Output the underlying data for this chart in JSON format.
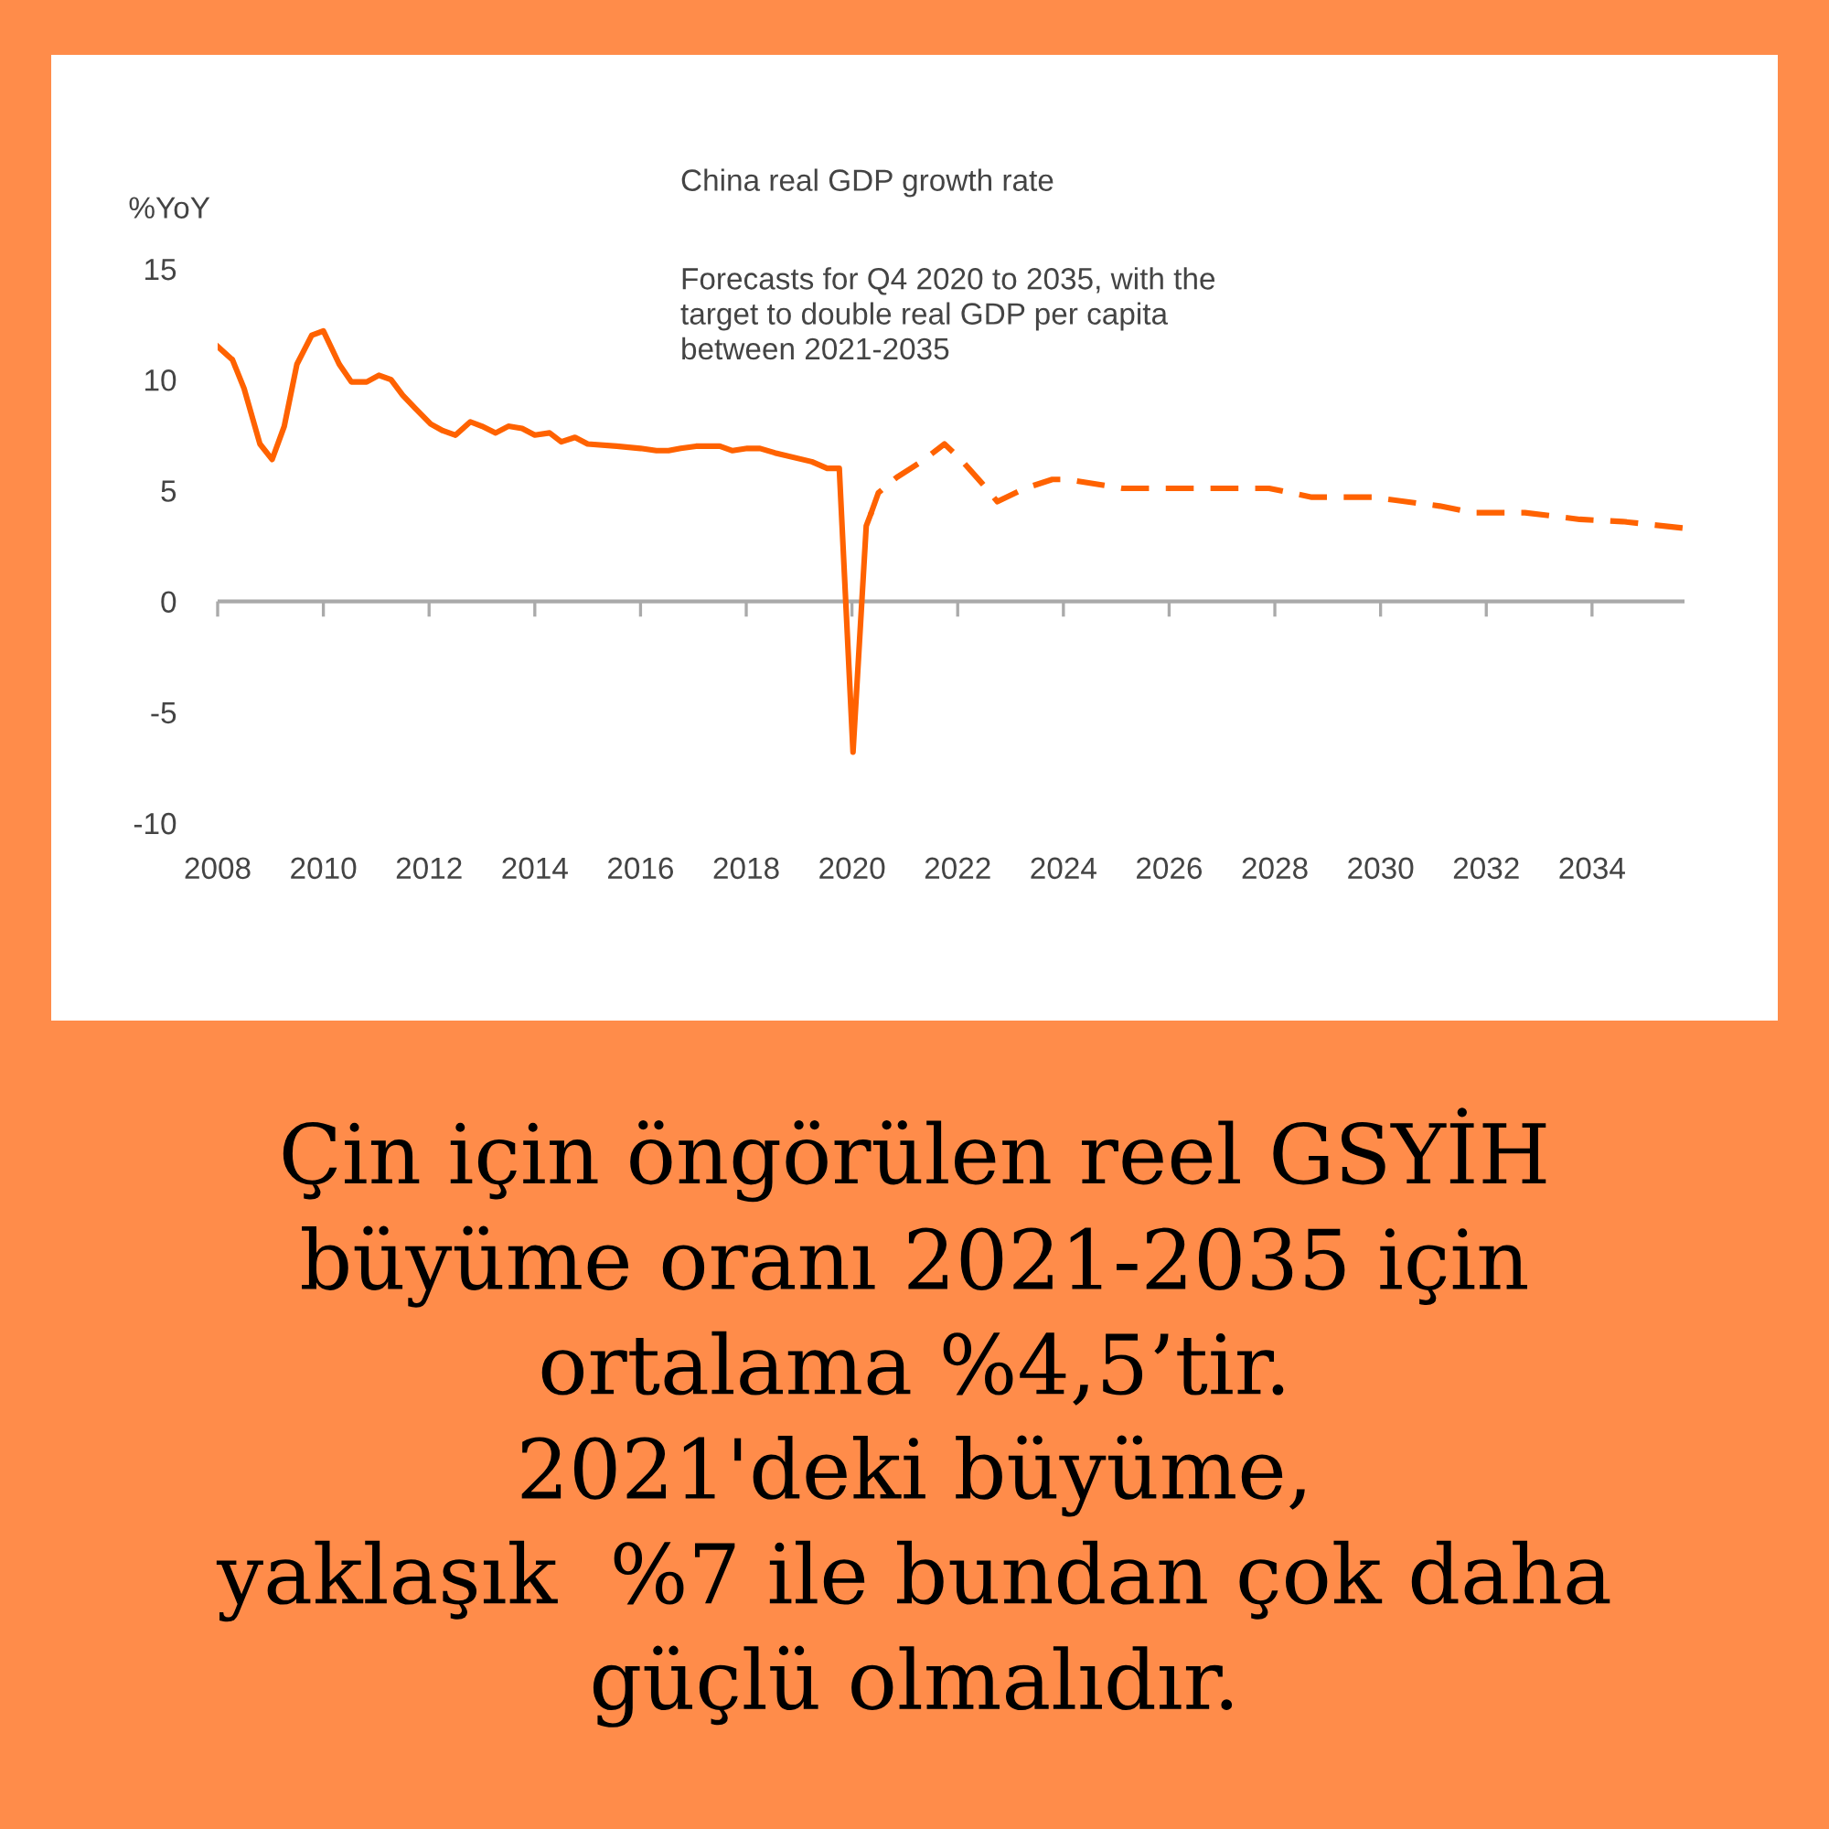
{
  "chart_data": {
    "type": "line",
    "title": "China real GDP growth rate",
    "subtitle": "Forecasts for Q4 2020 to 2035, with the\ntarget to double real GDP per capita\nbetween 2021-2035",
    "ylabel": "%YoY",
    "series": [
      {
        "color": "#ff6200",
        "line_style": "solid",
        "x": [
          2008.0,
          2008.28,
          2008.5,
          2008.8,
          2009.03,
          2009.26,
          2009.5,
          2009.78,
          2010.0,
          2010.3,
          2010.53,
          2010.82,
          2011.05,
          2011.28,
          2011.5,
          2011.74,
          2012.03,
          2012.26,
          2012.5,
          2012.78,
          2013.0,
          2013.26,
          2013.5,
          2013.76,
          2014.0,
          2014.28,
          2014.5,
          2014.76,
          2015.0,
          2015.55,
          2016.0,
          2016.3,
          2016.53,
          2016.76,
          2017.05,
          2017.5,
          2017.74,
          2018.02,
          2018.26,
          2018.54,
          2019.24,
          2019.53,
          2019.76,
          2020.02,
          2020.27,
          2020.35
        ],
        "values": [
          11.5,
          10.9,
          9.6,
          7.1,
          6.4,
          7.9,
          10.7,
          12.0,
          12.2,
          10.7,
          9.9,
          9.9,
          10.2,
          10.0,
          9.3,
          8.7,
          8.0,
          7.7,
          7.5,
          8.1,
          7.9,
          7.6,
          7.9,
          7.8,
          7.5,
          7.6,
          7.2,
          7.4,
          7.1,
          7.0,
          6.9,
          6.8,
          6.8,
          6.9,
          7.0,
          7.0,
          6.8,
          6.9,
          6.9,
          6.7,
          6.3,
          6.0,
          6.0,
          -6.8,
          3.4,
          3.9
        ]
      },
      {
        "color": "#ff6200",
        "line_style": "dashed",
        "x": [
          2020.35,
          2020.5,
          2020.85,
          2021.31,
          2021.75,
          2022.06,
          2022.47,
          2022.75,
          2023.27,
          2023.79,
          2024.08,
          2025.12,
          2025.58,
          2027.89,
          2028.7,
          2029.85,
          2031.12,
          2031.75,
          2032.73,
          2033.77,
          2034.58,
          2035.75
        ],
        "values": [
          3.9,
          4.9,
          5.6,
          6.3,
          7.1,
          6.4,
          5.3,
          4.5,
          5.1,
          5.5,
          5.5,
          5.1,
          5.1,
          5.1,
          4.7,
          4.7,
          4.3,
          4.0,
          4.0,
          3.7,
          3.6,
          3.3
        ]
      }
    ],
    "xlim": [
      2008,
      2035.75
    ],
    "xticks": [
      2008,
      2010,
      2012,
      2014,
      2016,
      2018,
      2020,
      2022,
      2024,
      2026,
      2028,
      2030,
      2032,
      2034
    ],
    "ylim": [
      -10,
      15
    ],
    "yticks": [
      -10,
      -5,
      0,
      5,
      10,
      15
    ],
    "grid": false,
    "legend": false,
    "ref_lines": [
      {
        "axis": "y",
        "value": 0,
        "color": "#aaaaaa"
      }
    ],
    "annotations": [
      "Çin için öngörülen reel GSYİH\nbüyüme oranı 2021-2035 için\nortalama %4,5’tir.\n2021'deki büyüme,\nyaklaşık  %7 ile bundan çok daha\ngüçlü olmalıdır."
    ]
  }
}
